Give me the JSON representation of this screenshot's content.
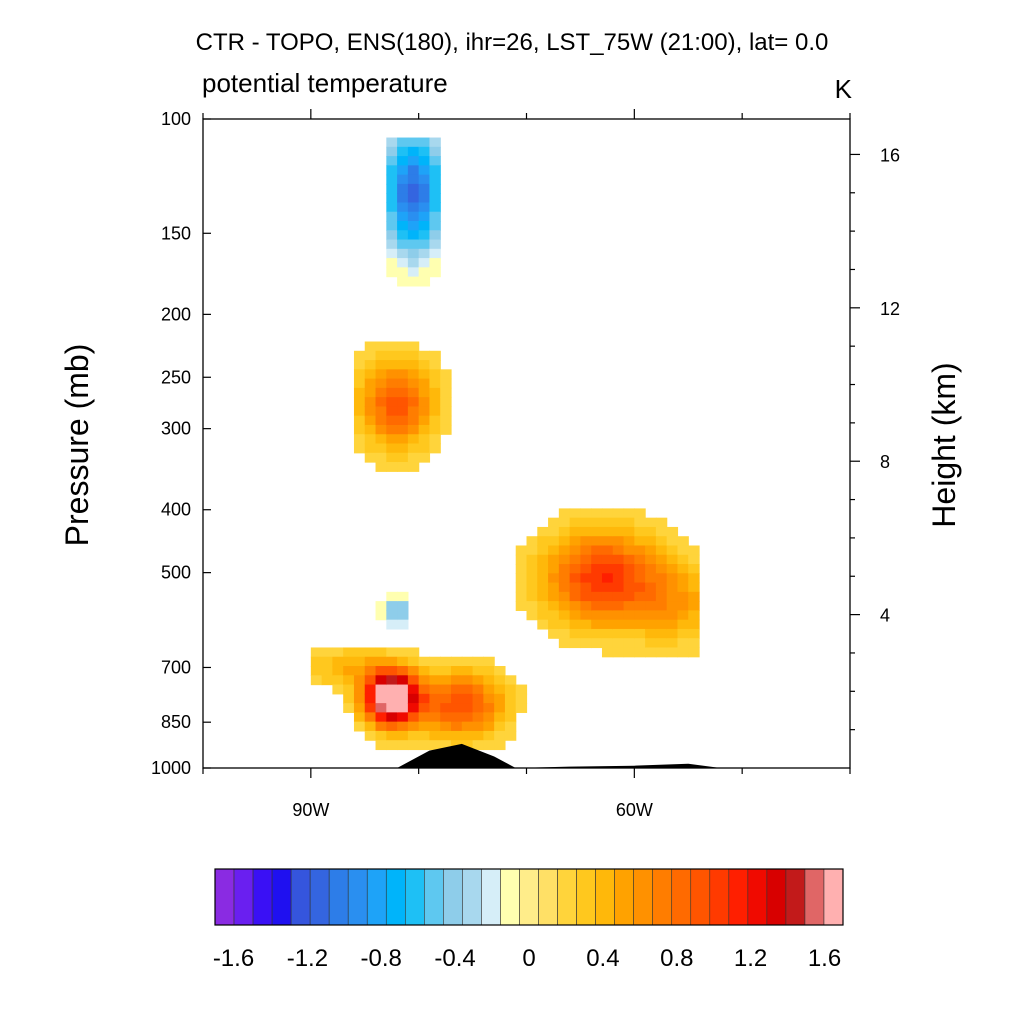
{
  "chart_data": {
    "type": "heatmap",
    "title": "CTR - TOPO, ENS(180), ihr=26, LST_75W (21:00), lat=  0.0",
    "subtitle_left": "potential temperature",
    "subtitle_right": "K",
    "ylabel_left": "Pressure (mb)",
    "ylabel_right": "Height (km)",
    "x_range": [
      -100,
      -40
    ],
    "x_ticks": [
      {
        "value": -90,
        "label": "90W"
      },
      {
        "value": -60,
        "label": "60W"
      }
    ],
    "y_range_pressure": [
      1000,
      100
    ],
    "y_ticks_left": [
      {
        "value": 100,
        "label": "100"
      },
      {
        "value": 150,
        "label": "150"
      },
      {
        "value": 200,
        "label": "200"
      },
      {
        "value": 250,
        "label": "250"
      },
      {
        "value": 300,
        "label": "300"
      },
      {
        "value": 400,
        "label": "400"
      },
      {
        "value": 500,
        "label": "500"
      },
      {
        "value": 700,
        "label": "700"
      },
      {
        "value": 850,
        "label": "850"
      },
      {
        "value": 1000,
        "label": "1000"
      }
    ],
    "y_ticks_right": [
      {
        "value": 4,
        "label": "4"
      },
      {
        "value": 8,
        "label": "8"
      },
      {
        "value": 12,
        "label": "12"
      },
      {
        "value": 16,
        "label": "16"
      }
    ],
    "colorbar": {
      "levels": [
        -1.7,
        -1.6,
        -1.5,
        -1.4,
        -1.3,
        -1.2,
        -1.1,
        -1.0,
        -0.9,
        -0.8,
        -0.7,
        -0.6,
        -0.5,
        -0.4,
        -0.3,
        -0.2,
        -0.1,
        0,
        0.1,
        0.2,
        0.3,
        0.4,
        0.5,
        0.6,
        0.7,
        0.8,
        0.9,
        1.0,
        1.1,
        1.2,
        1.3,
        1.4,
        1.5,
        1.6,
        1.7
      ],
      "colors": [
        "#8a2be2",
        "#6a1ff0",
        "#3a10f5",
        "#1f10f0",
        "#3555dd",
        "#3465e0",
        "#2d7de8",
        "#2a8ff0",
        "#1ea3f8",
        "#00b4fa",
        "#1ec0f5",
        "#5ec8f0",
        "#8ecdea",
        "#a8d8ee",
        "#d6eef8",
        "#ffffb0",
        "#ffed8a",
        "#ffe066",
        "#ffd43b",
        "#ffc81e",
        "#ffb80a",
        "#ffa200",
        "#ff9100",
        "#ff7d00",
        "#ff6a00",
        "#ff5500",
        "#ff3a00",
        "#ff1f00",
        "#f00a00",
        "#d80000",
        "#c21a1a",
        "#e06666",
        "#ffb0b0"
      ],
      "tick_labels": [
        "-1.6",
        "-1.2",
        "-0.8",
        "-0.4",
        "0",
        "0.4",
        "0.8",
        "1.2",
        "1.6"
      ],
      "tick_values": [
        -1.6,
        -1.2,
        -0.8,
        -0.4,
        0,
        0.4,
        0.8,
        1.2,
        1.6
      ]
    },
    "features": [
      {
        "name": "upper cold anomaly",
        "lon_range": [
          -83,
          -78
        ],
        "p_range": [
          110,
          175
        ],
        "min_value": -1.1
      },
      {
        "name": "upper-tropospheric warm anomaly",
        "lon_range": [
          -86,
          -78
        ],
        "p_range": [
          220,
          340
        ],
        "max_value": 0.8
      },
      {
        "name": "mid-tropospheric warm anomaly",
        "lon_range": [
          -70,
          -54
        ],
        "p_range": [
          390,
          680
        ],
        "max_value": 1.0
      },
      {
        "name": "low-level warm anomaly",
        "lon_range": [
          -90,
          -65
        ],
        "p_range": [
          640,
          930
        ],
        "max_value": 1.7
      },
      {
        "name": "small cold patch",
        "lon_range": [
          -83,
          -81
        ],
        "p_range": [
          540,
          620
        ],
        "min_value": -0.5
      }
    ],
    "terrain": {
      "peak_lon": -76,
      "peak_pressure": 920
    }
  }
}
